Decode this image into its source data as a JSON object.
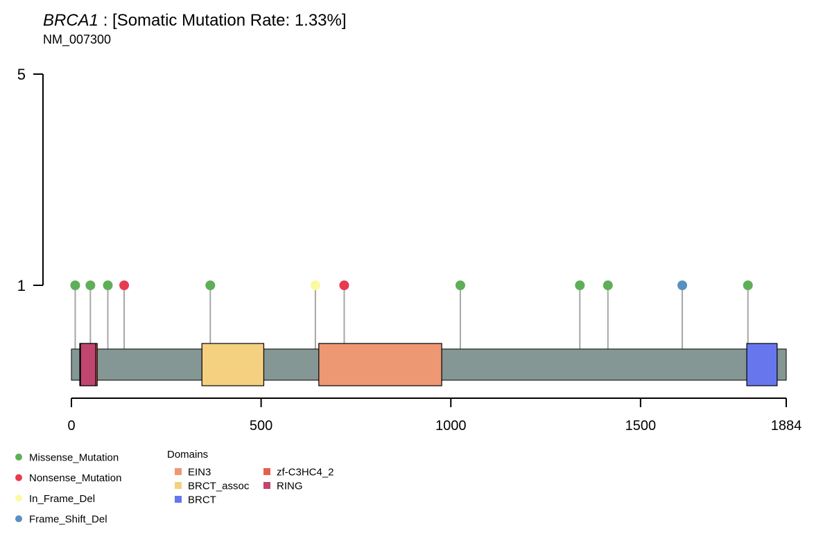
{
  "chart_data": {
    "type": "lollipop",
    "title": {
      "gene": "BRCA1",
      "rest": " : [Somatic Mutation Rate: 1.33%]"
    },
    "subtitle": "NM_007300",
    "protein_length": 1884,
    "x_ticks": [
      0,
      500,
      1000,
      1500,
      1884
    ],
    "x_tick_labels": [
      "0",
      "500",
      "1000",
      "1500",
      "1884"
    ],
    "y_ticks": [
      1,
      5
    ],
    "y_tick_labels": [
      "1",
      "5"
    ],
    "colors": {
      "backbone": "#859795",
      "stem": "#a6a6a6",
      "Missense_Mutation": "#5fae58",
      "Nonsense_Mutation": "#e63c4f",
      "In_Frame_Del": "#fcf9a0",
      "Frame_Shift_Del": "#5a8fc2",
      "EIN3": "#ee9873",
      "BRCT_assoc": "#f4d081",
      "BRCT": "#6776ec",
      "zf-C3HC4_2": "#e5604d",
      "RING": "#c0466f"
    },
    "mutations": [
      {
        "pos": 10,
        "count": 1,
        "type": "Missense_Mutation"
      },
      {
        "pos": 50,
        "count": 1,
        "type": "Missense_Mutation"
      },
      {
        "pos": 96,
        "count": 1,
        "type": "Missense_Mutation"
      },
      {
        "pos": 139,
        "count": 1,
        "type": "Nonsense_Mutation"
      },
      {
        "pos": 366,
        "count": 1,
        "type": "Missense_Mutation"
      },
      {
        "pos": 643,
        "count": 1,
        "type": "In_Frame_Del"
      },
      {
        "pos": 719,
        "count": 1,
        "type": "Nonsense_Mutation"
      },
      {
        "pos": 1025,
        "count": 1,
        "type": "Missense_Mutation"
      },
      {
        "pos": 1340,
        "count": 1,
        "type": "Missense_Mutation"
      },
      {
        "pos": 1414,
        "count": 1,
        "type": "Missense_Mutation"
      },
      {
        "pos": 1610,
        "count": 1,
        "type": "Frame_Shift_Del"
      },
      {
        "pos": 1783,
        "count": 1,
        "type": "Missense_Mutation"
      }
    ],
    "domains": [
      {
        "name": "zf-C3HC4_2",
        "start": 22,
        "end": 68
      },
      {
        "name": "RING",
        "start": 24,
        "end": 64
      },
      {
        "name": "BRCT_assoc",
        "start": 344,
        "end": 507
      },
      {
        "name": "EIN3",
        "start": 652,
        "end": 976
      },
      {
        "name": "BRCT",
        "start": 1780,
        "end": 1860
      }
    ],
    "legend": {
      "mutation_types": [
        "Missense_Mutation",
        "Nonsense_Mutation",
        "In_Frame_Del",
        "Frame_Shift_Del"
      ],
      "domains_title": "Domains",
      "domain_col1": [
        "EIN3",
        "BRCT_assoc",
        "BRCT"
      ],
      "domain_col2": [
        "zf-C3HC4_2",
        "RING"
      ]
    }
  }
}
